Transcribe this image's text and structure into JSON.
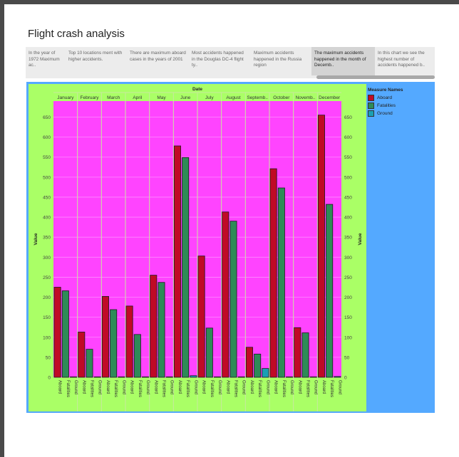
{
  "page": {
    "title": "Flight crash analysis"
  },
  "story": {
    "items": [
      {
        "text": "In the year of 1972 Maximum ac..",
        "active": false
      },
      {
        "text": "Top 10 locations  ment with higher accidents.",
        "active": false
      },
      {
        "text": "There are maximum aboard cases in the years of 2001",
        "active": false
      },
      {
        "text": "Most accidents happened in the Douglas DC-4 flight ty..",
        "active": false
      },
      {
        "text": "Maximum accidents happened  in the Russia region",
        "active": false
      },
      {
        "text": "The maximum accidents happened in the month of Decemb..",
        "active": true
      },
      {
        "text": "In this chart we see the highest number of accidents happened b..",
        "active": false
      }
    ]
  },
  "chart_data": {
    "type": "bar",
    "header": "Date",
    "categories": [
      "January",
      "February",
      "March",
      "April",
      "May",
      "June",
      "July",
      "August",
      "Septemb..",
      "October",
      "Novemb..",
      "December"
    ],
    "measures": [
      "Aboard",
      "Fatalities",
      "Ground"
    ],
    "series": [
      {
        "name": "Aboard",
        "color": "#c00a26",
        "values": [
          225,
          113,
          202,
          178,
          255,
          578,
          303,
          413,
          75,
          521,
          124,
          655
        ]
      },
      {
        "name": "Fatalities",
        "color": "#2e8b57",
        "values": [
          216,
          70,
          169,
          107,
          237,
          549,
          123,
          390,
          58,
          473,
          111,
          432
        ]
      },
      {
        "name": "Ground",
        "color": "#1aa0b4",
        "values": [
          0,
          0,
          1,
          0,
          0,
          4,
          0,
          0,
          22,
          0,
          0,
          2
        ]
      }
    ],
    "ylim": [
      0,
      690
    ],
    "yticks": [
      0,
      50,
      100,
      150,
      200,
      250,
      300,
      350,
      400,
      450,
      500,
      550,
      600,
      650
    ],
    "ylabel": "Value",
    "legend": {
      "title": "Measure Names",
      "position": "right"
    },
    "colors": {
      "plot_bg": "#ff44ff",
      "axis_bg": "#aaff66",
      "dashboard_bg": "#54a9ff"
    }
  }
}
